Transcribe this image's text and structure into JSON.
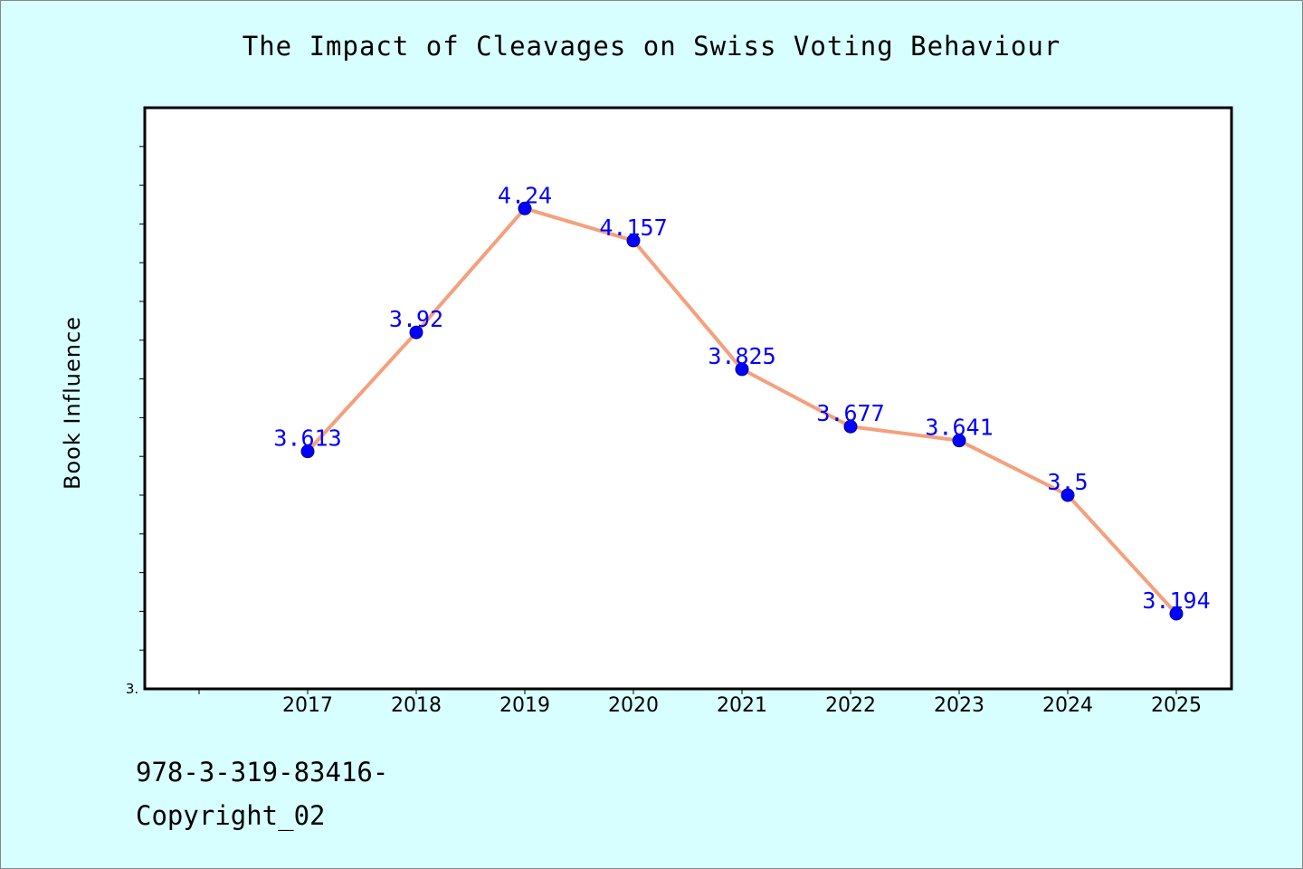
{
  "chart_data": {
    "type": "line",
    "title": "The Impact of Cleavages on Swiss Voting Behaviour",
    "xlabel": "",
    "ylabel": "Book Influence",
    "categories": [
      "2017",
      "2018",
      "2019",
      "2020",
      "2021",
      "2022",
      "2023",
      "2024",
      "2025"
    ],
    "series": [
      {
        "values": [
          3.613,
          3.92,
          4.24,
          4.157,
          3.825,
          3.677,
          3.641,
          3.5,
          3.194
        ]
      }
    ],
    "data_labels": [
      "3.613",
      "3.92",
      "4.24",
      "4.157",
      "3.825",
      "3.677",
      "3.641",
      "3.5",
      "3.194"
    ],
    "ylim": [
      3.0,
      4.5
    ],
    "y_tick_label": "3.",
    "grid": false,
    "colors": {
      "line": "#f4a07e",
      "marker": "#0000ff",
      "data_label": "#0000ff",
      "background": "#d8ffff",
      "plot_bg": "#ffffff"
    }
  },
  "footer": {
    "isbn": "978-3-319-83416-",
    "copyright": "Copyright_02"
  }
}
